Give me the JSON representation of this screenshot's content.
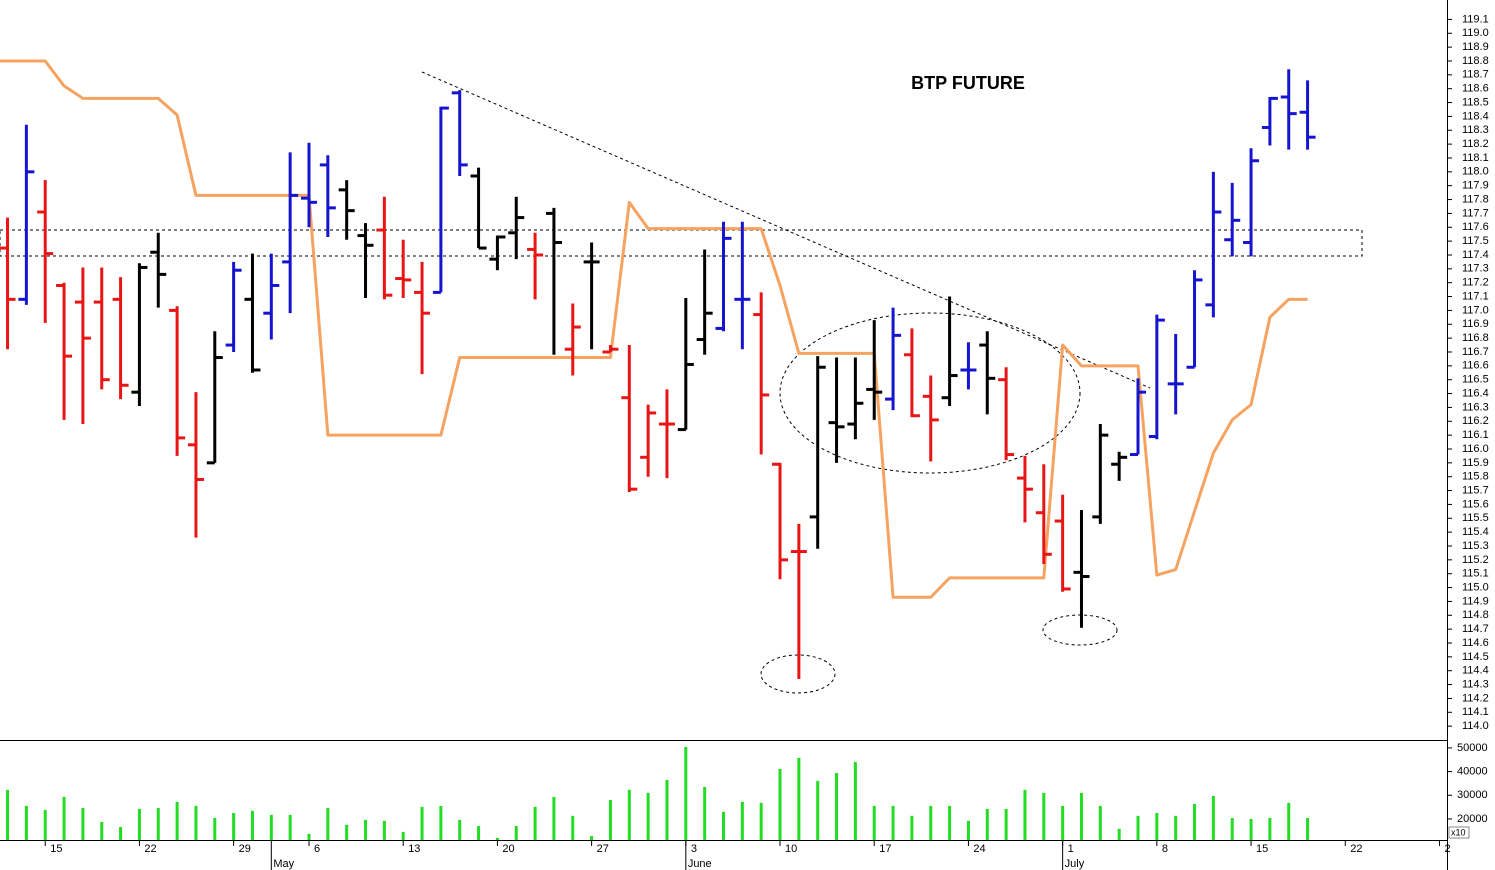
{
  "chart_data": [
    {
      "type": "ohlc",
      "title": "BTP FUTURE",
      "xlim": [
        -0.4,
        76.4
      ],
      "ylim": [
        113.9,
        119.24
      ],
      "yticks": [
        {
          "value": 114,
          "label": "114.0"
        },
        114.1,
        114.2,
        114.3,
        114.4,
        114.5,
        114.6,
        114.7,
        114.8,
        114.9,
        {
          "value": 115,
          "label": "115.0"
        },
        115.1,
        115.2,
        115.3,
        115.4,
        115.5,
        115.6,
        115.7,
        115.8,
        115.9,
        {
          "value": 116,
          "label": "116.0"
        },
        116.1,
        116.2,
        116.3,
        116.4,
        116.5,
        116.6,
        116.7,
        116.8,
        116.9,
        {
          "value": 117,
          "label": "117.0"
        },
        117.1,
        117.2,
        117.3,
        117.4,
        117.5,
        117.6,
        117.7,
        117.8,
        117.9,
        {
          "value": 118,
          "label": "118.0"
        },
        118.1,
        118.2,
        118.3,
        118.4,
        118.5,
        118.6,
        118.7,
        118.8,
        118.9,
        {
          "value": 119,
          "label": "119.0"
        },
        119.1
      ],
      "x": [
        0,
        1,
        2,
        3,
        4,
        5,
        6,
        7,
        8,
        9,
        10,
        11,
        12,
        13,
        14,
        15,
        16,
        17,
        18,
        19,
        20,
        21,
        22,
        23,
        24,
        25,
        26,
        27,
        28,
        29,
        30,
        31,
        32,
        33,
        34,
        35,
        36,
        37,
        38,
        39,
        40,
        41,
        42,
        43,
        44,
        45,
        46,
        47,
        48,
        49,
        50,
        51,
        52,
        53,
        54,
        55,
        56,
        57,
        58,
        59,
        60,
        61,
        62,
        63,
        64,
        65,
        66,
        67,
        68,
        69
      ],
      "open": [
        117.45,
        117.08,
        117.71,
        117.18,
        117.06,
        117.06,
        117.08,
        116.41,
        117.42,
        117.0,
        116.03,
        115.9,
        116.75,
        117.08,
        116.98,
        117.35,
        117.81,
        118.05,
        117.87,
        117.54,
        117.58,
        117.23,
        117.13,
        117.13,
        118.57,
        117.97,
        117.37,
        117.56,
        117.44,
        117.7,
        116.72,
        117.35,
        116.7,
        116.37,
        115.94,
        116.18,
        116.14,
        116.79,
        116.87,
        117.08,
        116.97,
        115.89,
        115.26,
        115.51,
        116.19,
        116.18,
        116.43,
        116.36,
        116.68,
        116.38,
        116.37,
        116.57,
        116.75,
        116.5,
        115.79,
        115.54,
        115.48,
        115.11,
        115.51,
        115.89,
        115.96,
        116.09,
        116.47,
        116.59,
        117.04,
        117.51,
        117.49,
        118.32,
        118.54,
        118.43
      ],
      "high": [
        117.67,
        118.34,
        117.94,
        117.2,
        117.31,
        117.31,
        117.24,
        117.34,
        117.56,
        117.03,
        116.41,
        116.85,
        117.35,
        117.41,
        117.41,
        118.14,
        118.21,
        118.12,
        117.94,
        117.63,
        117.82,
        117.51,
        117.35,
        118.47,
        118.59,
        118.03,
        117.54,
        117.82,
        117.56,
        117.74,
        117.05,
        117.49,
        116.75,
        116.75,
        116.32,
        116.43,
        117.09,
        117.44,
        117.64,
        117.64,
        117.13,
        115.9,
        115.46,
        116.67,
        116.66,
        116.66,
        116.93,
        117.02,
        116.87,
        116.53,
        117.1,
        116.77,
        116.85,
        116.59,
        115.95,
        115.89,
        115.67,
        115.56,
        116.18,
        115.98,
        116.51,
        116.97,
        116.83,
        117.29,
        118.0,
        117.92,
        118.17,
        118.54,
        118.74,
        118.66
      ],
      "low": [
        116.72,
        117.04,
        116.91,
        116.21,
        116.18,
        116.43,
        116.36,
        116.31,
        117.02,
        115.95,
        115.36,
        115.9,
        116.7,
        116.55,
        116.79,
        116.98,
        117.6,
        117.53,
        117.51,
        117.09,
        117.08,
        117.09,
        116.54,
        117.13,
        117.97,
        117.45,
        117.29,
        117.37,
        117.08,
        116.68,
        116.53,
        116.72,
        116.7,
        115.69,
        115.8,
        115.79,
        116.14,
        116.68,
        116.85,
        116.72,
        115.96,
        115.06,
        114.34,
        115.28,
        115.9,
        116.07,
        116.21,
        116.28,
        116.23,
        115.91,
        116.31,
        116.43,
        116.25,
        115.92,
        115.47,
        115.17,
        114.97,
        114.71,
        115.46,
        115.77,
        115.96,
        116.07,
        116.25,
        116.59,
        116.95,
        117.39,
        117.39,
        118.19,
        118.16,
        118.16
      ],
      "close": [
        117.08,
        118.0,
        117.41,
        116.67,
        116.8,
        116.5,
        116.46,
        117.31,
        117.26,
        116.08,
        115.78,
        116.66,
        117.29,
        116.57,
        117.18,
        117.83,
        117.78,
        117.74,
        117.72,
        117.47,
        117.11,
        117.22,
        116.98,
        118.46,
        118.05,
        117.45,
        117.53,
        117.67,
        117.4,
        117.49,
        116.88,
        117.35,
        116.72,
        115.71,
        116.26,
        116.18,
        116.61,
        116.98,
        117.52,
        117.08,
        116.39,
        115.2,
        115.26,
        116.59,
        116.16,
        116.33,
        116.41,
        116.82,
        116.24,
        116.21,
        116.53,
        116.57,
        116.51,
        115.96,
        115.71,
        115.24,
        114.99,
        115.08,
        116.1,
        115.94,
        116.41,
        116.93,
        116.47,
        117.22,
        117.71,
        117.65,
        118.08,
        118.53,
        118.42,
        118.25
      ],
      "bar_colors": [
        "#e81515",
        "#1515d0",
        "#e81515",
        "#e81515",
        "#e81515",
        "#e81515",
        "#e81515",
        "#000000",
        "#000000",
        "#e81515",
        "#e81515",
        "#000000",
        "#1515d0",
        "#000000",
        "#1515d0",
        "#1515d0",
        "#1515d0",
        "#1515d0",
        "#000000",
        "#000000",
        "#e81515",
        "#e81515",
        "#e81515",
        "#1515d0",
        "#1515d0",
        "#000000",
        "#000000",
        "#000000",
        "#e81515",
        "#000000",
        "#e81515",
        "#000000",
        "#e81515",
        "#e81515",
        "#e81515",
        "#e81515",
        "#000000",
        "#000000",
        "#1515d0",
        "#1515d0",
        "#e81515",
        "#e81515",
        "#e81515",
        "#000000",
        "#000000",
        "#000000",
        "#000000",
        "#1515d0",
        "#e81515",
        "#e81515",
        "#000000",
        "#1515d0",
        "#000000",
        "#e81515",
        "#e81515",
        "#e81515",
        "#e81515",
        "#000000",
        "#000000",
        "#000000",
        "#1515d0",
        "#1515d0",
        "#1515d0",
        "#1515d0",
        "#1515d0",
        "#1515d0",
        "#1515d0",
        "#1515d0",
        "#1515d0",
        "#1515d0"
      ],
      "lines": [
        {
          "color": "#f6a260",
          "x": [
            -0.4,
            2,
            3,
            4,
            8,
            9,
            10,
            16,
            17,
            23,
            24,
            32,
            33,
            34,
            40,
            41,
            42,
            46,
            47,
            49,
            50,
            55,
            56,
            57,
            60,
            61,
            62,
            63,
            64,
            65,
            66,
            67,
            68,
            69
          ],
          "values": [
            118.8,
            118.8,
            118.62,
            118.53,
            118.53,
            118.41,
            117.83,
            117.83,
            116.1,
            116.1,
            116.66,
            116.66,
            117.78,
            117.59,
            117.59,
            117.18,
            116.69,
            116.69,
            114.93,
            114.93,
            115.07,
            115.07,
            116.75,
            116.6,
            116.6,
            115.09,
            115.13,
            115.55,
            115.97,
            116.21,
            116.32,
            116.95,
            117.08,
            117.08
          ]
        }
      ]
    },
    {
      "type": "bar",
      "color": "#22dd22",
      "unit_label": "x10",
      "xlim": [
        -0.4,
        76.4
      ],
      "ylim": [
        11100,
        52500
      ],
      "yticks": [
        20000,
        30000,
        40000,
        50000
      ],
      "x": [
        0,
        1,
        2,
        3,
        4,
        5,
        6,
        7,
        8,
        9,
        10,
        11,
        12,
        13,
        14,
        15,
        16,
        17,
        18,
        19,
        20,
        21,
        22,
        23,
        24,
        25,
        26,
        27,
        28,
        29,
        30,
        31,
        32,
        33,
        34,
        35,
        36,
        37,
        38,
        39,
        40,
        41,
        42,
        43,
        44,
        45,
        46,
        47,
        48,
        49,
        50,
        51,
        52,
        53,
        54,
        55,
        56,
        57,
        58,
        59,
        60,
        61,
        62,
        63,
        64,
        65,
        66,
        67,
        68,
        69
      ],
      "values": [
        32250,
        25500,
        23800,
        29300,
        24600,
        18700,
        16600,
        24200,
        24600,
        27200,
        25500,
        20400,
        22500,
        23400,
        21700,
        21700,
        13700,
        24600,
        17500,
        19600,
        19200,
        14500,
        25100,
        25500,
        19600,
        17000,
        12000,
        17000,
        25100,
        29300,
        21300,
        12800,
        28000,
        32300,
        31000,
        36500,
        50400,
        33500,
        23000,
        27200,
        26800,
        41100,
        45800,
        36100,
        39400,
        44100,
        25500,
        25500,
        21300,
        25500,
        25500,
        19200,
        24200,
        24200,
        32300,
        31000,
        25500,
        31000,
        25500,
        15800,
        21300,
        22500,
        21300,
        26300,
        29700,
        20400,
        20000,
        20400,
        26800,
        20400
      ],
      "xticks": [
        {
          "value": 2,
          "label": "15"
        },
        {
          "value": 7,
          "label": "22"
        },
        {
          "value": 12,
          "label": "29"
        },
        {
          "value": 16,
          "label": "6"
        },
        {
          "value": 21,
          "label": "13"
        },
        {
          "value": 26,
          "label": "20"
        },
        {
          "value": 31,
          "label": "27"
        },
        {
          "value": 36,
          "label": "3"
        },
        {
          "value": 41,
          "label": "10"
        },
        {
          "value": 46,
          "label": "17"
        },
        {
          "value": 51,
          "label": "24"
        },
        {
          "value": 56,
          "label": "1"
        },
        {
          "value": 61,
          "label": "8"
        },
        {
          "value": 66,
          "label": "15"
        },
        {
          "value": 71,
          "label": "22"
        },
        {
          "value": 76,
          "label": "2"
        }
      ],
      "month_ticks": [
        {
          "value": 14,
          "label": "May"
        },
        {
          "value": 36,
          "label": "June"
        },
        {
          "value": 56,
          "label": "July"
        }
      ]
    }
  ]
}
